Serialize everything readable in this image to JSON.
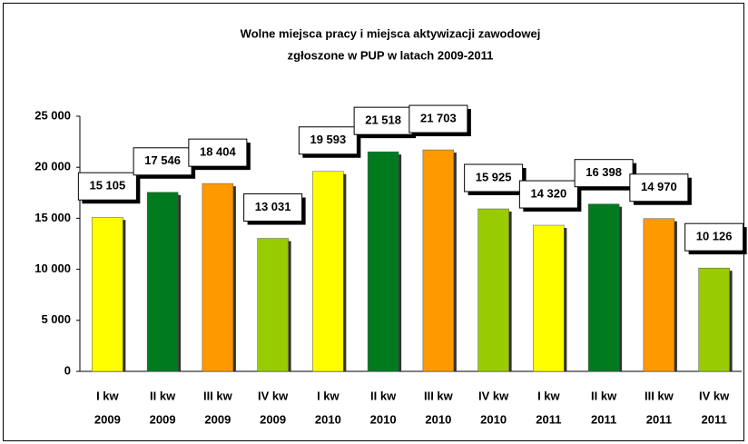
{
  "chart_data": {
    "type": "bar",
    "title": [
      "Wolne miejsca pracy i miejsca aktywizacji zawodowej",
      "zgłoszone w PUP w latach 2009-2011"
    ],
    "categories": [
      [
        "I kw",
        "2009"
      ],
      [
        "II kw",
        "2009"
      ],
      [
        "III kw",
        "2009"
      ],
      [
        "IV kw",
        "2009"
      ],
      [
        "I kw",
        "2010"
      ],
      [
        "II kw",
        "2010"
      ],
      [
        "III kw",
        "2010"
      ],
      [
        "IV kw",
        "2010"
      ],
      [
        "I kw",
        "2011"
      ],
      [
        "II kw",
        "2011"
      ],
      [
        "III kw",
        "2011"
      ],
      [
        "IV kw",
        "2011"
      ]
    ],
    "values": [
      15105,
      17546,
      18404,
      13031,
      19593,
      21518,
      21703,
      15925,
      14320,
      16398,
      14970,
      10126
    ],
    "value_labels": [
      "15 105",
      "17 546",
      "18 404",
      "13 031",
      "19 593",
      "21 518",
      "21 703",
      "15 925",
      "14 320",
      "16 398",
      "14 970",
      "10 126"
    ],
    "colors": [
      "#ffff00",
      "#007a1f",
      "#ff9900",
      "#99cc00",
      "#ffff00",
      "#007a1f",
      "#ff9900",
      "#99cc00",
      "#ffff00",
      "#007a1f",
      "#ff9900",
      "#99cc00"
    ],
    "ylim": [
      0,
      25000
    ],
    "yticks": [
      0,
      {
        "value": 5000,
        "label": "5 000"
      },
      {
        "value": 10000,
        "label": "10 000"
      },
      {
        "value": 15000,
        "label": "15 000"
      },
      {
        "value": 20000,
        "label": "20 000"
      },
      {
        "value": 25000,
        "label": "25 000"
      }
    ],
    "grid": false
  }
}
